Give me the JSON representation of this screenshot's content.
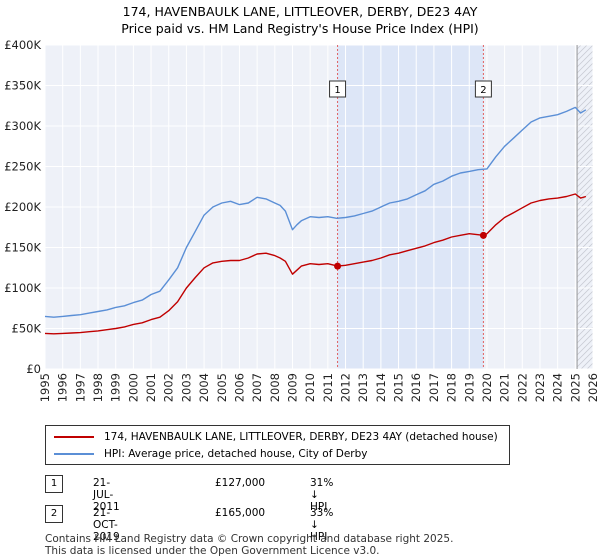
{
  "chart_data": {
    "type": "line",
    "title": "174, HAVENBAULK LANE, LITTLEOVER, DERBY, DE23 4AY",
    "subtitle": "Price paid vs. HM Land Registry's House Price Index (HPI)",
    "xlabel": "",
    "ylabel": "",
    "xlim": [
      1995,
      2026
    ],
    "ylim": [
      0,
      400000
    ],
    "grid": true,
    "x_ticks": [
      1995,
      1996,
      1997,
      1998,
      1999,
      2000,
      2001,
      2002,
      2003,
      2004,
      2005,
      2006,
      2007,
      2008,
      2009,
      2010,
      2011,
      2012,
      2013,
      2014,
      2015,
      2016,
      2017,
      2018,
      2019,
      2020,
      2021,
      2022,
      2023,
      2024,
      2025,
      2026
    ],
    "y_ticks": [
      {
        "value": 0,
        "label": "£0"
      },
      {
        "value": 50000,
        "label": "£50K"
      },
      {
        "value": 100000,
        "label": "£100K"
      },
      {
        "value": 150000,
        "label": "£150K"
      },
      {
        "value": 200000,
        "label": "£200K"
      },
      {
        "value": 250000,
        "label": "£250K"
      },
      {
        "value": 300000,
        "label": "£300K"
      },
      {
        "value": 350000,
        "label": "£350K"
      },
      {
        "value": 400000,
        "label": "£400K"
      }
    ],
    "highlight_span": {
      "from": 2011.55,
      "to": 2019.8,
      "color": "#dde6f7"
    },
    "forecast_from": 2025.1,
    "series": [
      {
        "name": "HPI: Average price, detached house, City of Derby",
        "color": "#5b8fd6",
        "x": [
          1995,
          1995.5,
          1996,
          1996.5,
          1997,
          1997.5,
          1998,
          1998.5,
          1999,
          1999.5,
          2000,
          2000.5,
          2001,
          2001.5,
          2002,
          2002.5,
          2003,
          2003.5,
          2004,
          2004.5,
          2005,
          2005.5,
          2006,
          2006.5,
          2007,
          2007.5,
          2008,
          2008.3,
          2008.6,
          2009,
          2009.25,
          2009.5,
          2010,
          2010.5,
          2011,
          2011.5,
          2012,
          2012.5,
          2013,
          2013.5,
          2014,
          2014.5,
          2015,
          2015.5,
          2016,
          2016.5,
          2017,
          2017.5,
          2018,
          2018.5,
          2019,
          2019.5,
          2020,
          2020.5,
          2021,
          2021.5,
          2022,
          2022.5,
          2023,
          2023.5,
          2024,
          2024.5,
          2025,
          2025.3,
          2025.6
        ],
        "y": [
          65000,
          64000,
          65000,
          66000,
          67000,
          69000,
          71000,
          73000,
          76000,
          78000,
          82000,
          85000,
          92000,
          96000,
          110000,
          125000,
          150000,
          170000,
          190000,
          200000,
          205000,
          207000,
          203000,
          205000,
          212000,
          210000,
          205000,
          202000,
          195000,
          172000,
          178000,
          183000,
          188000,
          187000,
          188000,
          186000,
          187000,
          189000,
          192000,
          195000,
          200000,
          205000,
          207000,
          210000,
          215000,
          220000,
          228000,
          232000,
          238000,
          242000,
          244000,
          246000,
          247000,
          262000,
          275000,
          285000,
          295000,
          305000,
          310000,
          312000,
          314000,
          318000,
          323000,
          316000,
          320000
        ]
      },
      {
        "name": "174, HAVENBAULK LANE, LITTLEOVER, DERBY, DE23 4AY (detached house)",
        "color": "#c00000",
        "x": [
          1995,
          1995.5,
          1996,
          1996.5,
          1997,
          1997.5,
          1998,
          1998.5,
          1999,
          1999.5,
          2000,
          2000.5,
          2001,
          2001.5,
          2002,
          2002.5,
          2003,
          2003.5,
          2004,
          2004.5,
          2005,
          2005.5,
          2006,
          2006.5,
          2007,
          2007.5,
          2008,
          2008.3,
          2008.6,
          2009,
          2009.25,
          2009.5,
          2010,
          2010.5,
          2011,
          2011.55,
          2012,
          2012.5,
          2013,
          2013.5,
          2014,
          2014.5,
          2015,
          2015.5,
          2016,
          2016.5,
          2017,
          2017.5,
          2018,
          2018.5,
          2019,
          2019.8,
          2020,
          2020.5,
          2021,
          2021.5,
          2022,
          2022.5,
          2023,
          2023.5,
          2024,
          2024.5,
          2025,
          2025.3,
          2025.6
        ],
        "y": [
          44000,
          43500,
          44000,
          44500,
          45000,
          46000,
          47000,
          48500,
          50000,
          52000,
          55000,
          57000,
          61000,
          64000,
          72000,
          83000,
          100000,
          113000,
          125000,
          131000,
          133000,
          134000,
          134000,
          137000,
          142000,
          143000,
          140000,
          137000,
          133000,
          117000,
          122000,
          127000,
          130000,
          129000,
          130000,
          127000,
          128000,
          130000,
          132000,
          134000,
          137000,
          141000,
          143000,
          146000,
          149000,
          152000,
          156000,
          159000,
          163000,
          165000,
          167000,
          165000,
          167000,
          178000,
          187000,
          193000,
          199000,
          205000,
          208000,
          210000,
          211000,
          213000,
          216000,
          211000,
          213000
        ]
      }
    ],
    "markers": [
      {
        "label": "1",
        "x": 2011.55,
        "y": 127000
      },
      {
        "label": "2",
        "x": 2019.8,
        "y": 165000
      }
    ]
  },
  "legend": {
    "property_label": "174, HAVENBAULK LANE, LITTLEOVER, DERBY, DE23 4AY (detached house)",
    "hpi_label": "HPI: Average price, detached house, City of Derby",
    "property_color": "#c00000",
    "hpi_color": "#5b8fd6"
  },
  "sales": [
    {
      "num": "1",
      "date": "21-JUL-2011",
      "price": "£127,000",
      "hpi": "31% ↓ HPI"
    },
    {
      "num": "2",
      "date": "21-OCT-2019",
      "price": "£165,000",
      "hpi": "33% ↓ HPI"
    }
  ],
  "footer": {
    "line1": "Contains HM Land Registry data © Crown copyright and database right 2025.",
    "line2": "This data is licensed under the Open Government Licence v3.0."
  }
}
